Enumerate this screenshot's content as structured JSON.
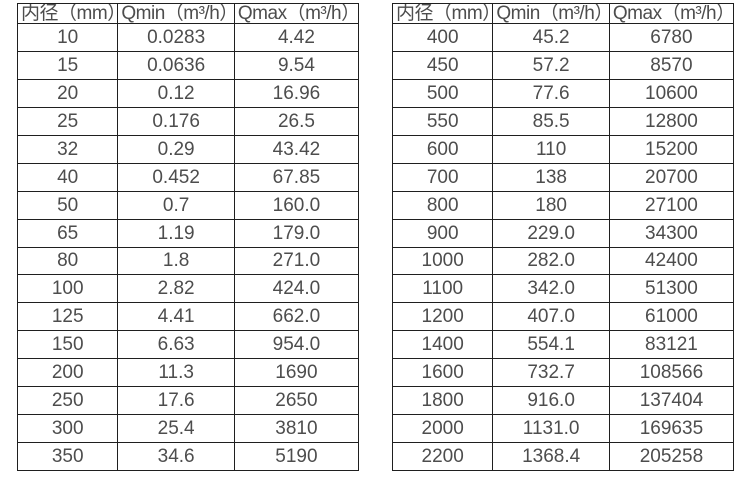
{
  "colors": {
    "background": "#ffffff",
    "text": "#4d4d4d",
    "border": "#1f1f1f"
  },
  "tables": [
    {
      "name": "flow-range-table-small-diameters",
      "headers": [
        "内径（mm）",
        "Qmin（m³/h）",
        "Qmax（m³/h）"
      ],
      "rows": [
        [
          "10",
          "0.0283",
          "4.42"
        ],
        [
          "15",
          "0.0636",
          "9.54"
        ],
        [
          "20",
          "0.12",
          "16.96"
        ],
        [
          "25",
          "0.176",
          "26.5"
        ],
        [
          "32",
          "0.29",
          "43.42"
        ],
        [
          "40",
          "0.452",
          "67.85"
        ],
        [
          "50",
          "0.7",
          "160.0"
        ],
        [
          "65",
          "1.19",
          "179.0"
        ],
        [
          "80",
          "1.8",
          "271.0"
        ],
        [
          "100",
          "2.82",
          "424.0"
        ],
        [
          "125",
          "4.41",
          "662.0"
        ],
        [
          "150",
          "6.63",
          "954.0"
        ],
        [
          "200",
          "11.3",
          "1690"
        ],
        [
          "250",
          "17.6",
          "2650"
        ],
        [
          "300",
          "25.4",
          "3810"
        ],
        [
          "350",
          "34.6",
          "5190"
        ]
      ]
    },
    {
      "name": "flow-range-table-large-diameters",
      "headers": [
        "内径（mm）",
        "Qmin（m³/h）",
        "Qmax（m³/h）"
      ],
      "rows": [
        [
          "400",
          "45.2",
          "6780"
        ],
        [
          "450",
          "57.2",
          "8570"
        ],
        [
          "500",
          "77.6",
          "10600"
        ],
        [
          "550",
          "85.5",
          "12800"
        ],
        [
          "600",
          "110",
          "15200"
        ],
        [
          "700",
          "138",
          "20700"
        ],
        [
          "800",
          "180",
          "27100"
        ],
        [
          "900",
          "229.0",
          "34300"
        ],
        [
          "1000",
          "282.0",
          "42400"
        ],
        [
          "1100",
          "342.0",
          "51300"
        ],
        [
          "1200",
          "407.0",
          "61000"
        ],
        [
          "1400",
          "554.1",
          "83121"
        ],
        [
          "1600",
          "732.7",
          "108566"
        ],
        [
          "1800",
          "916.0",
          "137404"
        ],
        [
          "2000",
          "1131.0",
          "169635"
        ],
        [
          "2200",
          "1368.4",
          "205258"
        ]
      ]
    }
  ]
}
